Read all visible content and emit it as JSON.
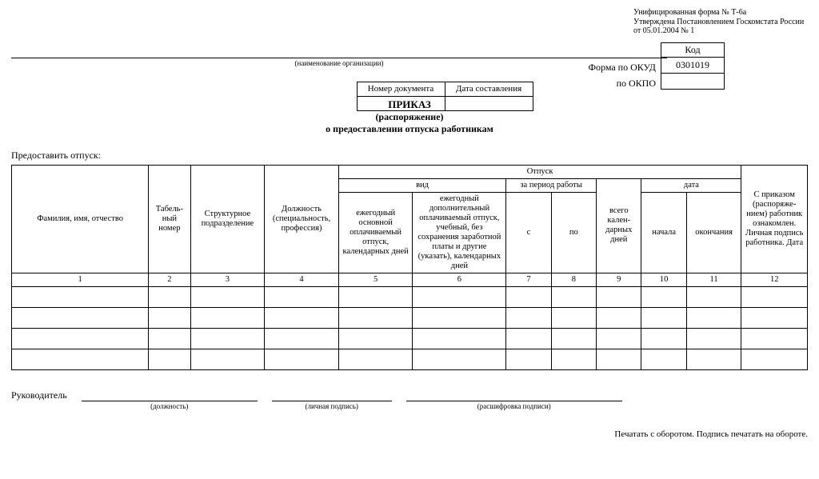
{
  "meta": {
    "line1": "Унифицированная форма № Т-6а",
    "line2": "Утверждена Постановлением Госкомстата России",
    "line3": "от 05.01.2004 № 1"
  },
  "codes": {
    "header": "Код",
    "okud_label": "Форма по ОКУД",
    "okud_value": "0301019",
    "okpo_label": "по ОКПО",
    "okpo_value": ""
  },
  "org_caption": "(наименование организации)",
  "docnum": {
    "col1": "Номер документа",
    "col2": "Дата составления",
    "val1": "",
    "val2": ""
  },
  "title": {
    "main": "ПРИКАЗ",
    "sub1": "(распоряжение)",
    "sub2": "о предоставлении отпуска работникам"
  },
  "grant_label": "Предоставить отпуск:",
  "table": {
    "headers": {
      "fio": "Фамилия, имя, отчество",
      "tabno": "Табель-\nный\nномер",
      "dept": "Структурное\nподразделение",
      "position": "Должность\n(специальность,\nпрофессия)",
      "vacation": "Отпуск",
      "kind": "вид",
      "period": "за период работы",
      "date": "дата",
      "annual": "ежегодный\nосновной\nоплачиваемый\nотпуск,\nкалендарных\nдней",
      "additional": "ежегодный\nдополнительный\nоплачиваемый\nотпуск, учебный,\nбез сохранения\nзаработной платы и\nдругие (указать),\nкалендарных дней",
      "from": "с",
      "to": "по",
      "total_days": "всего\nкален-\nдарных\nдней",
      "start": "начала",
      "end": "окончания",
      "signature": "С приказом\n(распоряже-\nнием)\nработник\nознакомлен.\nЛичная\nподпись\nработника.\nДата"
    },
    "nums": [
      "1",
      "2",
      "3",
      "4",
      "5",
      "6",
      "7",
      "8",
      "9",
      "10",
      "11",
      "12"
    ],
    "row_count": 4
  },
  "signatures": {
    "leader": "Руководитель",
    "position_cap": "(должность)",
    "sign_cap": "(личная подпись)",
    "decode_cap": "(расшифровка подписи)"
  },
  "footer": "Печатать с оборотом. Подпись печатать на обороте."
}
